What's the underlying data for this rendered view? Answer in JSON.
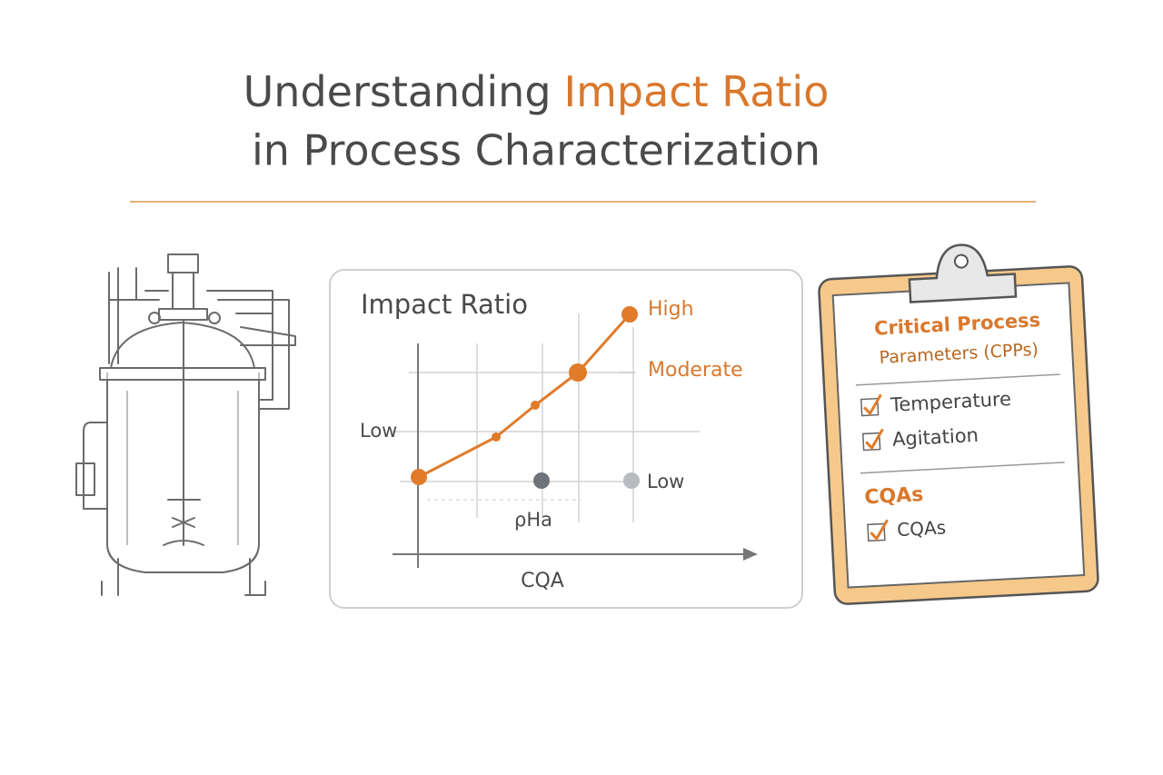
{
  "header": {
    "title_lead": "Understanding",
    "title_highlight": "Impact Ratio",
    "title_line2": "in Process Characterization"
  },
  "chart_panel": {
    "title": "Impact Ratio",
    "labels": {
      "high": "High",
      "moderate": "Moderate",
      "low_left": "Low",
      "low_right": "Low",
      "ph": "ρHa",
      "x_axis": "CQA"
    }
  },
  "clipboard": {
    "heading_line1": "Critical Process",
    "heading_line2": "Parameters (CPPs)",
    "items": [
      "Temperature",
      "Agitation"
    ],
    "section2": "CQAs",
    "items2": [
      "CQAs"
    ]
  }
}
